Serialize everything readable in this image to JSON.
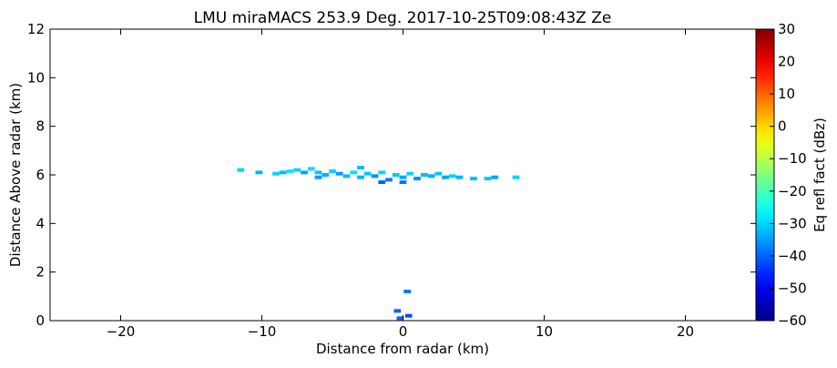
{
  "chart_data": {
    "type": "rhi",
    "title": "LMU miraMACS 253.9 Deg. 2017-10-25T09:08:43Z  Ze",
    "xlabel": "Distance from radar (km)",
    "ylabel": "Distance Above radar  (km)",
    "xlim": [
      -25,
      25
    ],
    "xticks": [
      -20,
      -10,
      0,
      10,
      20
    ],
    "ylim": [
      0,
      12
    ],
    "yticks": [
      0,
      2,
      4,
      6,
      8,
      10,
      12
    ],
    "colorbar": {
      "label": "Eq refl fact (dBz)",
      "lim": [
        -60,
        30
      ],
      "ticks": [
        -60,
        -50,
        -40,
        -30,
        -20,
        -10,
        0,
        10,
        20,
        30
      ],
      "colormap": "jet"
    },
    "x": [
      -11.5,
      -10.2,
      -9.0,
      -8.5,
      -8.0,
      -7.5,
      -7.0,
      -6.5,
      -6.0,
      -5.5,
      -5.0,
      -4.5,
      -4.0,
      -3.5,
      -3.0,
      -2.5,
      -2.0,
      -1.5,
      -1.0,
      -0.5,
      0.0,
      0.5,
      1.0,
      1.5,
      2.0,
      2.5,
      3.0,
      3.5,
      4.0,
      5.0,
      6.0,
      6.5,
      8.0,
      -1.5,
      0.0,
      -6.0,
      -3.0,
      -0.4,
      0.4,
      0.3,
      -0.2
    ],
    "y": [
      6.2,
      6.1,
      6.05,
      6.1,
      6.15,
      6.2,
      6.1,
      6.25,
      6.1,
      6.0,
      6.15,
      6.05,
      5.95,
      6.1,
      5.9,
      6.05,
      5.95,
      6.1,
      5.8,
      6.0,
      5.9,
      6.05,
      5.85,
      6.0,
      5.95,
      6.05,
      5.9,
      5.95,
      5.9,
      5.85,
      5.85,
      5.9,
      5.9,
      5.7,
      5.7,
      5.9,
      6.3,
      0.4,
      0.2,
      1.2,
      0.1
    ],
    "values": [
      -30,
      -33,
      -30,
      -32,
      -28,
      -30,
      -34,
      -29,
      -31,
      -33,
      -30,
      -35,
      -32,
      -29,
      -33,
      -31,
      -36,
      -30,
      -38,
      -31,
      -34,
      -30,
      -36,
      -32,
      -33,
      -31,
      -34,
      -30,
      -33,
      -32,
      -31,
      -34,
      -30,
      -40,
      -38,
      -35,
      -32,
      -40,
      -42,
      -38,
      -40
    ]
  }
}
